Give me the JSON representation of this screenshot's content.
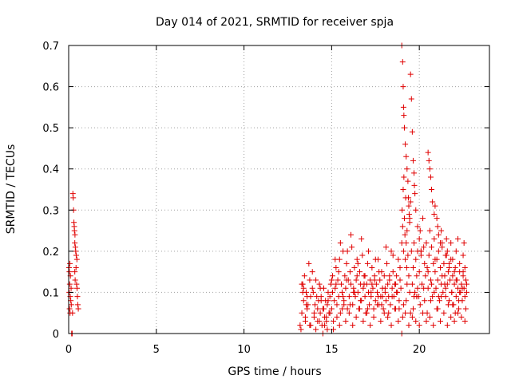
{
  "chart_data": {
    "type": "scatter",
    "title": "Day 014 of 2021, SRMTID for receiver spja",
    "xlabel": "GPS time / hours",
    "ylabel": "SRMTID / TECUs",
    "xlim": [
      0,
      24
    ],
    "ylim": [
      0,
      0.7
    ],
    "xticks": [
      0,
      5,
      10,
      15,
      20
    ],
    "xtick_labels": [
      "0",
      "5",
      "10",
      "15",
      "20"
    ],
    "yticks": [
      0,
      0.1,
      0.2,
      0.3,
      0.4,
      0.5,
      0.6,
      0.7
    ],
    "ytick_labels": [
      "0",
      "0.1",
      "0.2",
      "0.3",
      "0.4",
      "0.5",
      "0.6",
      "0.7"
    ],
    "grid": true,
    "marker": "plus",
    "colors": {
      "series": "#e00000",
      "axes": "#000000",
      "grid": "#a0a0a0"
    },
    "series": [
      {
        "name": "SRMTID",
        "x": [
          0.02,
          0.03,
          0.04,
          0.05,
          0.06,
          0.07,
          0.08,
          0.09,
          0.1,
          0.12,
          0.14,
          0.15,
          0.17,
          0.2,
          0.22,
          0.24,
          0.26,
          0.28,
          0.3,
          0.32,
          0.33,
          0.35,
          0.36,
          0.38,
          0.4,
          0.42,
          0.43,
          0.45,
          0.47,
          0.48,
          0.5,
          0.52,
          0.55,
          0.35,
          0.37,
          13.2,
          13.3,
          13.35,
          13.4,
          13.45,
          13.5,
          13.55,
          13.6,
          13.7,
          13.75,
          13.8,
          13.9,
          14.0,
          14.05,
          14.1,
          14.2,
          14.25,
          14.3,
          14.35,
          14.4,
          14.45,
          14.5,
          14.55,
          14.6,
          14.65,
          14.7,
          14.75,
          14.8,
          14.85,
          14.9,
          14.95,
          15.0,
          15.05,
          15.1,
          15.15,
          15.2,
          15.25,
          15.3,
          15.35,
          15.4,
          15.45,
          15.5,
          15.55,
          15.6,
          15.65,
          15.7,
          15.75,
          15.8,
          15.85,
          15.9,
          15.95,
          16.0,
          16.05,
          16.1,
          16.15,
          16.2,
          16.25,
          16.3,
          16.35,
          16.4,
          16.45,
          16.5,
          16.55,
          16.6,
          16.65,
          16.7,
          16.75,
          16.8,
          16.85,
          16.9,
          16.95,
          17.0,
          17.05,
          17.1,
          17.15,
          17.2,
          17.25,
          17.3,
          17.35,
          17.4,
          17.45,
          17.5,
          17.55,
          17.6,
          17.65,
          17.7,
          17.75,
          17.8,
          17.85,
          17.9,
          17.95,
          18.0,
          18.05,
          18.1,
          18.15,
          18.2,
          18.25,
          18.3,
          18.35,
          18.4,
          18.45,
          18.5,
          18.55,
          18.6,
          18.65,
          18.7,
          18.75,
          18.8,
          18.85,
          18.9,
          18.95,
          19.0,
          19.02,
          19.05,
          19.08,
          19.1,
          19.12,
          19.15,
          19.18,
          19.2,
          19.22,
          19.25,
          19.28,
          19.3,
          19.35,
          19.4,
          19.45,
          19.5,
          19.55,
          19.6,
          19.65,
          19.7,
          19.75,
          19.8,
          19.85,
          19.9,
          19.95,
          20.0,
          20.05,
          20.1,
          20.15,
          20.2,
          20.25,
          20.3,
          20.35,
          20.4,
          20.45,
          20.5,
          20.55,
          20.6,
          20.65,
          20.7,
          20.75,
          20.8,
          20.85,
          20.9,
          20.95,
          21.0,
          21.05,
          21.1,
          21.15,
          21.2,
          21.25,
          21.3,
          21.35,
          21.4,
          21.45,
          21.5,
          21.55,
          21.6,
          21.65,
          21.7,
          21.75,
          21.8,
          21.85,
          21.9,
          21.95,
          22.0,
          22.05,
          22.1,
          22.15,
          22.2,
          22.25,
          22.3,
          22.35,
          22.4,
          22.45,
          22.5,
          22.55,
          22.6,
          22.65,
          22.7,
          13.25,
          13.4,
          13.5,
          13.65,
          13.8,
          13.95,
          14.1,
          14.3,
          14.5,
          14.6,
          14.75,
          14.9,
          15.1,
          15.3,
          15.45,
          15.6,
          15.8,
          16.0,
          16.2,
          16.4,
          16.6,
          16.8,
          17.0,
          17.2,
          17.4,
          17.6,
          17.8,
          18.0,
          18.2,
          18.4,
          18.6,
          18.8,
          19.0,
          19.2,
          19.4,
          19.6,
          19.8,
          20.0,
          20.2,
          20.4,
          20.6,
          20.8,
          21.0,
          21.2,
          21.4,
          21.6,
          21.8,
          22.0,
          22.2,
          22.4,
          22.6,
          13.3,
          13.6,
          13.9,
          14.2,
          14.4,
          14.7,
          15.0,
          15.2,
          15.5,
          15.7,
          15.9,
          16.1,
          16.3,
          16.5,
          16.7,
          16.9,
          17.1,
          17.3,
          17.5,
          17.7,
          17.9,
          18.1,
          18.3,
          18.5,
          18.7,
          18.9,
          19.1,
          19.3,
          19.5,
          19.7,
          19.9,
          20.1,
          20.3,
          20.5,
          20.7,
          20.9,
          21.1,
          21.3,
          21.5,
          21.7,
          21.9,
          22.1,
          22.3,
          22.5,
          22.7,
          13.35,
          13.55,
          13.75,
          14.0,
          14.15,
          14.35,
          14.55,
          14.8,
          15.05,
          15.25,
          15.4,
          15.65,
          15.85,
          16.05,
          16.25,
          16.45,
          16.65,
          16.85,
          17.05,
          17.25,
          17.45,
          17.65,
          17.85,
          18.05,
          18.25,
          18.45,
          18.65,
          18.85,
          19.05,
          19.25,
          19.45,
          19.65,
          19.85,
          20.05,
          20.25,
          20.45,
          20.65,
          20.85,
          21.05,
          21.25,
          21.45,
          21.65,
          21.85,
          22.05,
          22.25,
          22.45,
          22.65,
          19.0,
          19.05,
          19.08,
          19.1,
          19.12,
          19.15,
          19.2,
          19.25,
          19.3,
          19.35,
          19.38,
          19.4,
          19.42,
          19.45,
          19.5,
          19.55,
          19.6,
          19.65,
          19.7,
          19.72,
          19.75,
          19.8,
          19.9,
          20.0,
          20.1,
          20.5,
          20.55,
          20.6,
          20.65,
          20.7,
          20.75,
          20.85,
          20.9,
          21.0,
          21.05,
          21.1,
          21.2,
          21.25,
          21.3,
          21.5,
          21.55,
          21.6,
          21.7,
          21.8,
          21.9,
          22.0,
          22.1,
          22.2,
          22.3,
          22.5,
          22.55,
          22.6
        ],
        "y": [
          0.16,
          0.1,
          0.15,
          0.06,
          0.12,
          0.17,
          0.05,
          0.09,
          0.14,
          0.08,
          0.11,
          0.07,
          0.0,
          0.0,
          0.05,
          0.34,
          0.33,
          0.3,
          0.27,
          0.26,
          0.25,
          0.22,
          0.24,
          0.21,
          0.2,
          0.16,
          0.19,
          0.12,
          0.18,
          0.11,
          0.09,
          0.07,
          0.06,
          0.15,
          0.13,
          0.02,
          0.05,
          0.12,
          0.08,
          0.14,
          0.03,
          0.1,
          0.06,
          0.17,
          0.02,
          0.09,
          0.11,
          0.04,
          0.07,
          0.13,
          0.03,
          0.08,
          0.12,
          0.05,
          0.09,
          0.02,
          0.06,
          0.11,
          0.04,
          0.08,
          0.03,
          0.07,
          0.1,
          0.05,
          0.09,
          0.12,
          0.06,
          0.14,
          0.03,
          0.08,
          0.11,
          0.16,
          0.07,
          0.13,
          0.09,
          0.18,
          0.05,
          0.12,
          0.1,
          0.2,
          0.08,
          0.14,
          0.11,
          0.17,
          0.06,
          0.13,
          0.09,
          0.15,
          0.12,
          0.21,
          0.07,
          0.11,
          0.16,
          0.09,
          0.13,
          0.18,
          0.1,
          0.06,
          0.15,
          0.12,
          0.08,
          0.19,
          0.11,
          0.14,
          0.09,
          0.05,
          0.12,
          0.17,
          0.1,
          0.07,
          0.13,
          0.09,
          0.16,
          0.11,
          0.06,
          0.14,
          0.08,
          0.12,
          0.1,
          0.18,
          0.07,
          0.13,
          0.09,
          0.15,
          0.11,
          0.06,
          0.14,
          0.1,
          0.08,
          0.17,
          0.12,
          0.09,
          0.13,
          0.07,
          0.2,
          0.11,
          0.15,
          0.09,
          0.12,
          0.06,
          0.14,
          0.1,
          0.18,
          0.08,
          0.13,
          0.11,
          0.22,
          0.3,
          0.26,
          0.35,
          0.2,
          0.38,
          0.28,
          0.24,
          0.18,
          0.33,
          0.22,
          0.16,
          0.25,
          0.19,
          0.14,
          0.28,
          0.32,
          0.2,
          0.12,
          0.16,
          0.22,
          0.1,
          0.18,
          0.14,
          0.2,
          0.09,
          0.15,
          0.25,
          0.19,
          0.12,
          0.28,
          0.21,
          0.17,
          0.14,
          0.22,
          0.16,
          0.11,
          0.19,
          0.25,
          0.13,
          0.21,
          0.09,
          0.17,
          0.23,
          0.15,
          0.11,
          0.18,
          0.13,
          0.2,
          0.08,
          0.16,
          0.12,
          0.22,
          0.1,
          0.17,
          0.14,
          0.09,
          0.19,
          0.12,
          0.15,
          0.08,
          0.13,
          0.18,
          0.1,
          0.14,
          0.07,
          0.12,
          0.16,
          0.09,
          0.13,
          0.11,
          0.06,
          0.15,
          0.1,
          0.12,
          0.08,
          0.14,
          0.11,
          0.09,
          0.13,
          0.1,
          0.01,
          0.11,
          0.04,
          0.07,
          0.02,
          0.1,
          0.01,
          0.03,
          0.0,
          0.02,
          0.01,
          0.05,
          0.01,
          0.04,
          0.02,
          0.06,
          0.03,
          0.05,
          0.02,
          0.04,
          0.06,
          0.03,
          0.05,
          0.02,
          0.04,
          0.07,
          0.03,
          0.05,
          0.04,
          0.02,
          0.06,
          0.03,
          0.0,
          0.05,
          0.02,
          0.04,
          0.03,
          0.02,
          0.05,
          0.03,
          0.04,
          0.02,
          0.06,
          0.03,
          0.05,
          0.02,
          0.04,
          0.03,
          0.05,
          0.04,
          0.03,
          0.12,
          0.09,
          0.15,
          0.06,
          0.08,
          0.04,
          0.13,
          0.18,
          0.22,
          0.07,
          0.2,
          0.24,
          0.1,
          0.17,
          0.23,
          0.14,
          0.2,
          0.12,
          0.18,
          0.15,
          0.09,
          0.21,
          0.14,
          0.19,
          0.1,
          0.16,
          0.07,
          0.12,
          0.05,
          0.09,
          0.11,
          0.2,
          0.08,
          0.15,
          0.12,
          0.18,
          0.09,
          0.14,
          0.11,
          0.16,
          0.07,
          0.13,
          0.1,
          0.15,
          0.12,
          0.1,
          0.07,
          0.13,
          0.05,
          0.09,
          0.11,
          0.06,
          0.08,
          0.1,
          0.12,
          0.15,
          0.09,
          0.13,
          0.07,
          0.1,
          0.14,
          0.08,
          0.12,
          0.06,
          0.1,
          0.13,
          0.09,
          0.07,
          0.11,
          0.05,
          0.09,
          0.12,
          0.06,
          0.04,
          0.08,
          0.1,
          0.06,
          0.09,
          0.07,
          0.11,
          0.05,
          0.08,
          0.1,
          0.06,
          0.09,
          0.12,
          0.07,
          0.1,
          0.05,
          0.08,
          0.11,
          0.06,
          0.7,
          0.66,
          0.6,
          0.55,
          0.53,
          0.5,
          0.46,
          0.43,
          0.4,
          0.37,
          0.33,
          0.31,
          0.29,
          0.27,
          0.63,
          0.57,
          0.49,
          0.42,
          0.39,
          0.36,
          0.34,
          0.3,
          0.26,
          0.23,
          0.2,
          0.44,
          0.42,
          0.4,
          0.38,
          0.35,
          0.32,
          0.29,
          0.31,
          0.28,
          0.26,
          0.24,
          0.22,
          0.25,
          0.21,
          0.19,
          0.23,
          0.2,
          0.17,
          0.22,
          0.18,
          0.15,
          0.2,
          0.23,
          0.17,
          0.19,
          0.22,
          0.16
        ]
      }
    ]
  }
}
